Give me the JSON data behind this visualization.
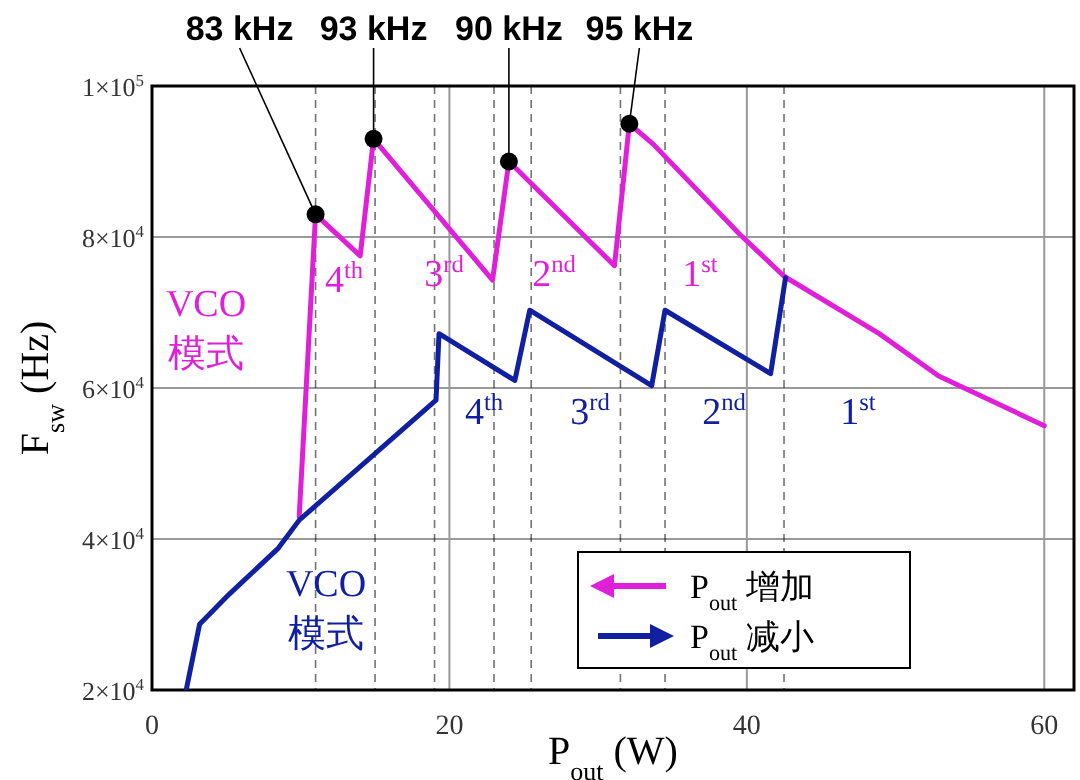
{
  "chart_data": {
    "type": "line",
    "xlabel": "P$_{out}$ (W)",
    "ylabel": "F$_{sw}$ (Hz)",
    "xlim": [
      0,
      62
    ],
    "xticks": [
      0,
      20,
      40,
      60
    ],
    "ylim": [
      20000,
      100000
    ],
    "yticks": [
      {
        "value": 20000,
        "label": "2×10$^{4}$"
      },
      {
        "value": 40000,
        "label": "4×10$^{4}$"
      },
      {
        "value": 60000,
        "label": "6×10$^{4}$"
      },
      {
        "value": 80000,
        "label": "8×10$^{4}$"
      },
      {
        "value": 100000,
        "label": "1×10$^{5}$"
      }
    ],
    "grid": true,
    "legend": "bottom right",
    "line_style": "solid",
    "marker": "none",
    "series": [
      {
        "name": "P$_{out}$ 增加",
        "color": "#e020d8",
        "x": [
          9.9,
          11,
          14,
          14.9,
          22.9,
          24,
          31.1,
          32.1,
          33.7,
          39.5,
          42.5,
          48.9,
          52.9,
          60
        ],
        "values": [
          43000,
          83000,
          77500,
          93000,
          74300,
          90000,
          76200,
          95000,
          92300,
          80400,
          74800,
          67200,
          61600,
          55000
        ]
      },
      {
        "name": "P$_{out}$ 减小",
        "color": "#1020a0",
        "x": [
          2.3,
          3.2,
          5.2,
          8.5,
          9.9,
          19.1,
          19.3,
          24.4,
          25.4,
          33.6,
          34.5,
          41.6,
          42.6
        ],
        "values": [
          20000,
          28700,
          32700,
          38800,
          42500,
          58400,
          67200,
          61000,
          70300,
          60300,
          70300,
          61900,
          74600
        ]
      },
      {
        "type": "scatter",
        "color": "#000000",
        "marker": "circle",
        "x": [
          11,
          14.9,
          24,
          32.1
        ],
        "values": [
          83000,
          93000,
          90000,
          95000
        ]
      }
    ],
    "ref_lines": [
      {
        "axis": "x",
        "value": 11,
        "line_style": "dashed"
      },
      {
        "axis": "x",
        "value": 15,
        "line_style": "dashed"
      },
      {
        "axis": "x",
        "value": 23,
        "line_style": "dashed"
      },
      {
        "axis": "x",
        "value": 31.5,
        "line_style": "dashed"
      },
      {
        "axis": "x",
        "value": 19,
        "line_style": "dashed"
      },
      {
        "axis": "x",
        "value": 25.5,
        "line_style": "dashed"
      },
      {
        "axis": "x",
        "value": 34.5,
        "line_style": "dashed"
      },
      {
        "axis": "x",
        "value": 42.5,
        "line_style": "dashed"
      }
    ],
    "annotations": [
      {
        "text": "83 kHz",
        "x": 11,
        "y": 83000
      },
      {
        "text": "93 kHz",
        "x": 14.9,
        "y": 93000
      },
      {
        "text": "90 kHz",
        "x": 24,
        "y": 90000
      },
      {
        "text": "95 kHz",
        "x": 32.1,
        "y": 95000
      },
      "4$^{th}$",
      "3$^{rd}$",
      "2$^{nd}$",
      "1$^{st}$",
      "VCO\n模式",
      "4$^{th}$",
      "3$^{rd}$",
      "2$^{nd}$",
      "1$^{st}$",
      "VCO\n模式"
    ]
  }
}
